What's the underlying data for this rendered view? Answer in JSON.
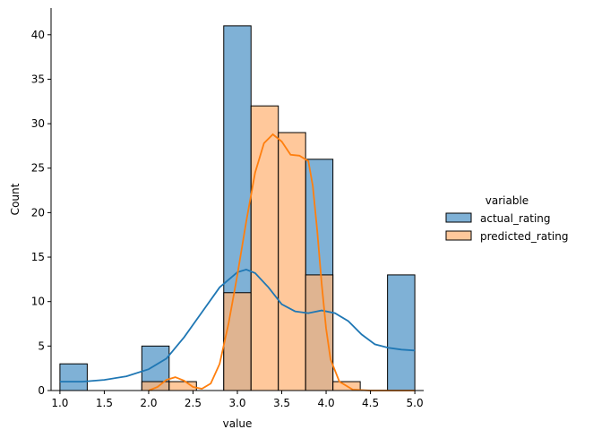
{
  "chart_data": {
    "type": "bar",
    "xlabel": "value",
    "ylabel": "Count",
    "xlim": [
      0.9,
      5.1
    ],
    "ylim": [
      0,
      43
    ],
    "x_ticks": [
      1.0,
      1.5,
      2.0,
      2.5,
      3.0,
      3.5,
      4.0,
      4.5,
      5.0
    ],
    "x_tick_labels": [
      "1.0",
      "1.5",
      "2.0",
      "2.5",
      "3.0",
      "3.5",
      "4.0",
      "4.5",
      "5.0"
    ],
    "y_ticks": [
      0,
      5,
      10,
      15,
      20,
      25,
      30,
      35,
      40
    ],
    "y_tick_labels": [
      "0",
      "5",
      "10",
      "15",
      "20",
      "25",
      "30",
      "35",
      "40"
    ],
    "bin_edges": [
      1.0,
      1.3077,
      1.6154,
      1.9231,
      2.2308,
      2.5385,
      2.8462,
      3.1538,
      3.4615,
      3.7692,
      4.0769,
      4.3846,
      4.6923,
      5.0
    ],
    "legend": {
      "title": "variable",
      "position": "right"
    },
    "grid": false,
    "series": [
      {
        "name": "actual_rating",
        "color": "#1f77b4",
        "fill": "#7fb1d6",
        "counts": [
          3,
          0,
          0,
          5,
          0,
          0,
          41,
          0,
          0,
          26,
          0,
          0,
          13
        ],
        "kde": [
          [
            1.0,
            1.0
          ],
          [
            1.25,
            1.0
          ],
          [
            1.5,
            1.2
          ],
          [
            1.75,
            1.6
          ],
          [
            2.0,
            2.4
          ],
          [
            2.2,
            3.6
          ],
          [
            2.4,
            6.0
          ],
          [
            2.6,
            8.8
          ],
          [
            2.8,
            11.6
          ],
          [
            3.0,
            13.3
          ],
          [
            3.1,
            13.6
          ],
          [
            3.2,
            13.2
          ],
          [
            3.35,
            11.6
          ],
          [
            3.5,
            9.7
          ],
          [
            3.65,
            8.9
          ],
          [
            3.8,
            8.7
          ],
          [
            3.95,
            9.0
          ],
          [
            4.1,
            8.7
          ],
          [
            4.25,
            7.8
          ],
          [
            4.4,
            6.3
          ],
          [
            4.55,
            5.2
          ],
          [
            4.7,
            4.8
          ],
          [
            4.85,
            4.6
          ],
          [
            5.0,
            4.5
          ]
        ]
      },
      {
        "name": "predicted_rating",
        "color": "#ff7f0e",
        "fill": "#ffb57a",
        "counts": [
          0,
          0,
          0,
          1,
          1,
          0,
          11,
          32,
          29,
          13,
          1,
          0,
          0
        ],
        "kde": [
          [
            2.0,
            0.0
          ],
          [
            2.1,
            0.4
          ],
          [
            2.2,
            1.2
          ],
          [
            2.3,
            1.5
          ],
          [
            2.4,
            1.1
          ],
          [
            2.5,
            0.4
          ],
          [
            2.6,
            0.2
          ],
          [
            2.7,
            0.8
          ],
          [
            2.8,
            3.0
          ],
          [
            2.9,
            7.5
          ],
          [
            3.0,
            13.0
          ],
          [
            3.1,
            19.0
          ],
          [
            3.2,
            24.5
          ],
          [
            3.3,
            27.8
          ],
          [
            3.4,
            28.8
          ],
          [
            3.5,
            28.0
          ],
          [
            3.6,
            26.5
          ],
          [
            3.7,
            26.4
          ],
          [
            3.8,
            25.8
          ],
          [
            3.85,
            23.0
          ],
          [
            3.9,
            18.0
          ],
          [
            3.95,
            12.0
          ],
          [
            4.0,
            7.0
          ],
          [
            4.05,
            3.5
          ],
          [
            4.15,
            1.0
          ],
          [
            4.3,
            0.1
          ],
          [
            4.5,
            0.0
          ],
          [
            5.0,
            0.0
          ]
        ]
      }
    ]
  }
}
